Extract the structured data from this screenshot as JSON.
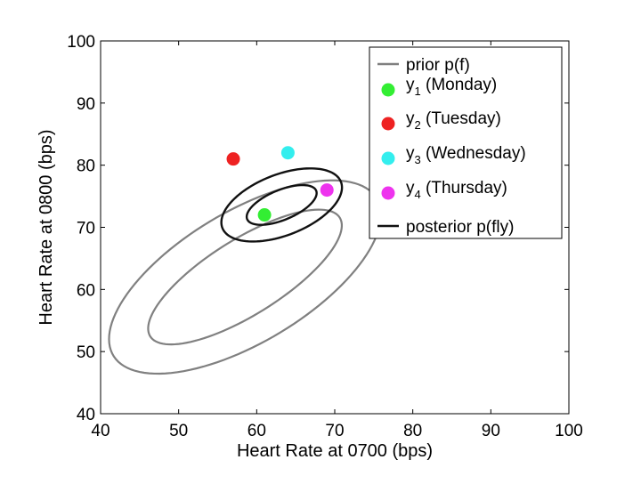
{
  "chart_data": {
    "type": "scatter",
    "title": "",
    "xlabel": "Heart Rate at 0700 (bps)",
    "ylabel": "Heart Rate at 0800 (bps)",
    "xlim": [
      40,
      100
    ],
    "ylim": [
      40,
      100
    ],
    "xticks": [
      "40",
      "50",
      "60",
      "70",
      "80",
      "90",
      "100"
    ],
    "yticks": [
      "40",
      "50",
      "60",
      "70",
      "80",
      "90",
      "100"
    ],
    "grid": false,
    "legend_position": "top-right",
    "points": [
      {
        "name": "y1 (Monday)",
        "label_main": "y",
        "label_sub": "1",
        "label_rest": " (Monday)",
        "x": 61,
        "y": 72,
        "color": "#33ee33"
      },
      {
        "name": "y2 (Tuesday)",
        "label_main": "y",
        "label_sub": "2",
        "label_rest": " (Tuesday)",
        "x": 57,
        "y": 81,
        "color": "#ee2222"
      },
      {
        "name": "y3 (Wednesday)",
        "label_main": "y",
        "label_sub": "3",
        "label_rest": " (Wednesday)",
        "x": 64,
        "y": 82,
        "color": "#33eeee"
      },
      {
        "name": "y4 (Thursday)",
        "label_main": "y",
        "label_sub": "4",
        "label_rest": " (Thursday)",
        "x": 69,
        "y": 76,
        "color": "#ee33ee"
      }
    ],
    "prior": {
      "name": "prior p(f)",
      "color": "#808080",
      "contours": [
        {
          "cx": 58.5,
          "cy": 62,
          "a": 15.5,
          "b": 5.6,
          "angle_deg": 40
        },
        {
          "cx": 58.5,
          "cy": 62,
          "a": 21.2,
          "b": 9.8,
          "angle_deg": 40
        }
      ]
    },
    "posterior": {
      "name": "posterior p(fly)",
      "color": "#111111",
      "contours": [
        {
          "cx": 63.2,
          "cy": 73.6,
          "a": 5.0,
          "b": 2.3,
          "angle_deg": 30
        },
        {
          "cx": 63.2,
          "cy": 73.6,
          "a": 8.5,
          "b": 4.7,
          "angle_deg": 30
        }
      ]
    }
  }
}
